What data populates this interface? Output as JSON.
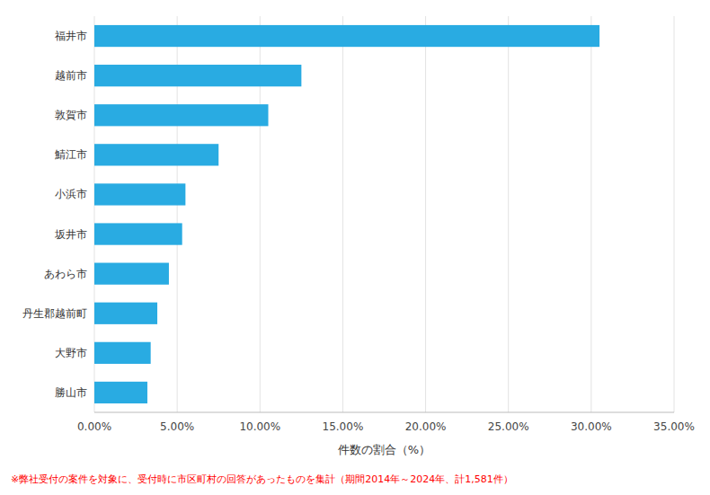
{
  "chart_data": {
    "type": "bar",
    "orientation": "horizontal",
    "categories": [
      "福井市",
      "越前市",
      "敦賀市",
      "鯖江市",
      "小浜市",
      "坂井市",
      "あわら市",
      "丹生郡越前町",
      "大野市",
      "勝山市"
    ],
    "values": [
      30.5,
      12.5,
      10.5,
      7.5,
      5.5,
      5.3,
      4.5,
      3.8,
      3.4,
      3.2
    ],
    "color": "#29ABE2",
    "xlabel": "件数の割合（%）",
    "xlim": [
      0,
      35
    ],
    "xticks": [
      {
        "value": 0,
        "label": "0.00%"
      },
      {
        "value": 5,
        "label": "5.00%"
      },
      {
        "value": 10,
        "label": "10.00%"
      },
      {
        "value": 15,
        "label": "15.00%"
      },
      {
        "value": 20,
        "label": "20.00%"
      },
      {
        "value": 25,
        "label": "25.00%"
      },
      {
        "value": 30,
        "label": "30.00%"
      },
      {
        "value": 35,
        "label": "35.00%"
      }
    ],
    "grid": true,
    "annotations": [
      {
        "text": "※弊社受付の案件を対象に、受付時に市区町村の回答があったものを集計（期間2014年～2024年、計1,581件）",
        "color": "#FF0000"
      }
    ]
  }
}
